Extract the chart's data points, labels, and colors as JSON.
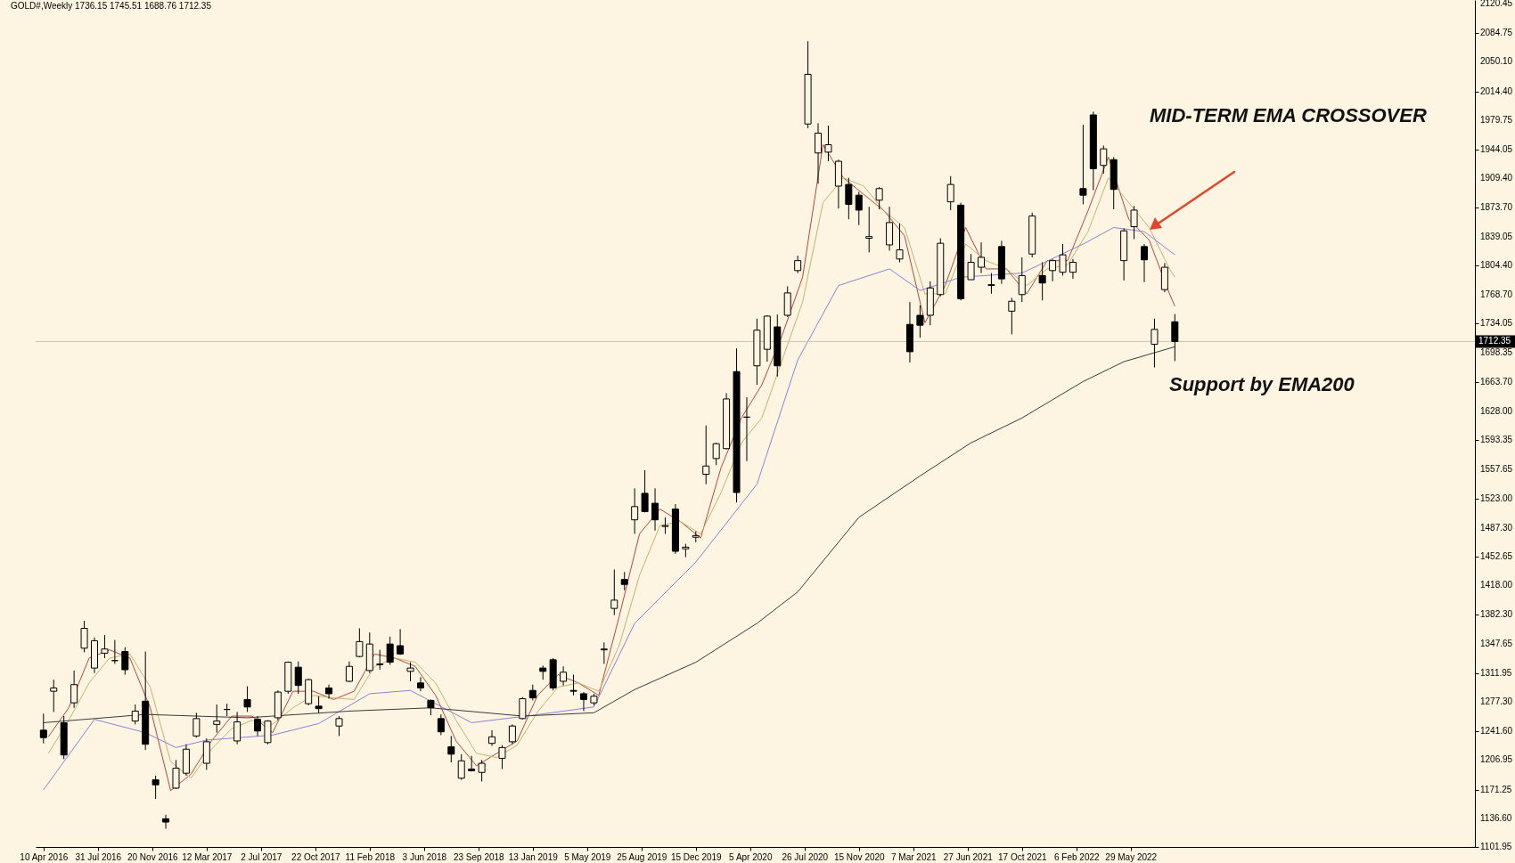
{
  "chart_data": {
    "type": "candlestick",
    "title": "GOLD#,Weekly 1736.15 1745.51 1688.76 1712.35",
    "x": [
      "2016-04-10",
      "2016-05-01",
      "2016-05-22",
      "2016-06-12",
      "2016-07-03",
      "2016-07-24",
      "2016-08-14",
      "2016-09-04",
      "2016-09-25",
      "2016-10-16",
      "2016-11-06",
      "2016-11-27",
      "2016-12-18",
      "2017-01-08",
      "2017-01-29",
      "2017-02-19",
      "2017-03-12",
      "2017-04-02",
      "2017-04-23",
      "2017-05-14",
      "2017-06-04",
      "2017-06-25",
      "2017-07-16",
      "2017-08-06",
      "2017-08-27",
      "2017-09-17",
      "2017-10-08",
      "2017-10-29",
      "2017-11-19",
      "2017-12-10",
      "2017-12-31",
      "2018-01-21",
      "2018-02-11",
      "2018-03-04",
      "2018-03-25",
      "2018-04-15",
      "2018-05-06",
      "2018-05-27",
      "2018-06-17",
      "2018-07-08",
      "2018-07-29",
      "2018-08-19",
      "2018-09-09",
      "2018-09-30",
      "2018-10-21",
      "2018-11-11",
      "2018-12-02",
      "2018-12-23",
      "2019-01-13",
      "2019-02-03",
      "2019-02-24",
      "2019-03-17",
      "2019-04-07",
      "2019-04-28",
      "2019-05-19",
      "2019-06-09",
      "2019-06-30",
      "2019-07-21",
      "2019-08-11",
      "2019-09-01",
      "2019-09-22",
      "2019-10-13",
      "2019-11-03",
      "2019-11-24",
      "2019-12-15",
      "2020-01-05",
      "2020-01-26",
      "2020-02-16",
      "2020-03-08",
      "2020-03-29",
      "2020-04-19",
      "2020-05-10",
      "2020-05-31",
      "2020-06-21",
      "2020-07-12",
      "2020-08-02",
      "2020-08-23",
      "2020-09-13",
      "2020-10-04",
      "2020-10-25",
      "2020-11-15",
      "2020-12-06",
      "2020-12-27",
      "2021-01-17",
      "2021-02-07",
      "2021-02-28",
      "2021-03-21",
      "2021-04-11",
      "2021-05-02",
      "2021-05-23",
      "2021-06-13",
      "2021-07-04",
      "2021-07-25",
      "2021-08-15",
      "2021-09-05",
      "2021-09-26",
      "2021-10-17",
      "2021-11-07",
      "2021-11-28",
      "2021-12-19",
      "2022-01-09",
      "2022-01-30",
      "2022-02-20",
      "2022-03-13",
      "2022-04-03",
      "2022-04-24",
      "2022-05-15",
      "2022-06-05",
      "2022-06-26",
      "2022-07-17",
      "2022-08-07",
      "2022-08-28"
    ],
    "ohlc": [
      [
        1243,
        1263,
        1227,
        1234
      ],
      [
        1290,
        1304,
        1265,
        1294
      ],
      [
        1252,
        1260,
        1208,
        1213
      ],
      [
        1276,
        1315,
        1270,
        1298
      ],
      [
        1342,
        1375,
        1337,
        1366
      ],
      [
        1318,
        1355,
        1312,
        1351
      ],
      [
        1336,
        1358,
        1330,
        1341
      ],
      [
        1327,
        1352,
        1323,
        1327
      ],
      [
        1338,
        1343,
        1310,
        1316
      ],
      [
        1254,
        1274,
        1250,
        1266
      ],
      [
        1278,
        1338,
        1219,
        1226
      ],
      [
        1183,
        1188,
        1160,
        1177
      ],
      [
        1136,
        1141,
        1124,
        1132
      ],
      [
        1173,
        1207,
        1172,
        1197
      ],
      [
        1191,
        1226,
        1188,
        1220
      ],
      [
        1236,
        1264,
        1234,
        1257
      ],
      [
        1203,
        1233,
        1195,
        1229
      ],
      [
        1250,
        1274,
        1240,
        1254
      ],
      [
        1268,
        1275,
        1260,
        1268
      ],
      [
        1230,
        1265,
        1226,
        1253
      ],
      [
        1280,
        1296,
        1265,
        1271
      ],
      [
        1256,
        1260,
        1236,
        1242
      ],
      [
        1228,
        1255,
        1226,
        1254
      ],
      [
        1258,
        1291,
        1255,
        1289
      ],
      [
        1290,
        1326,
        1287,
        1325
      ],
      [
        1319,
        1326,
        1287,
        1297
      ],
      [
        1275,
        1305,
        1273,
        1304
      ],
      [
        1272,
        1284,
        1264,
        1269
      ],
      [
        1294,
        1298,
        1281,
        1287
      ],
      [
        1248,
        1260,
        1236,
        1257
      ],
      [
        1302,
        1326,
        1301,
        1320
      ],
      [
        1332,
        1366,
        1331,
        1350
      ],
      [
        1315,
        1361,
        1312,
        1347
      ],
      [
        1322,
        1340,
        1316,
        1323
      ],
      [
        1347,
        1356,
        1322,
        1325
      ],
      [
        1345,
        1365,
        1334,
        1335
      ],
      [
        1314,
        1325,
        1302,
        1318
      ],
      [
        1300,
        1307,
        1290,
        1294
      ],
      [
        1279,
        1280,
        1261,
        1270
      ],
      [
        1257,
        1262,
        1237,
        1241
      ],
      [
        1223,
        1236,
        1204,
        1214
      ],
      [
        1185,
        1214,
        1183,
        1206
      ],
      [
        1196,
        1212,
        1193,
        1194
      ],
      [
        1192,
        1207,
        1181,
        1203
      ],
      [
        1227,
        1243,
        1224,
        1235
      ],
      [
        1209,
        1225,
        1196,
        1222
      ],
      [
        1229,
        1250,
        1226,
        1248
      ],
      [
        1257,
        1283,
        1256,
        1281
      ],
      [
        1291,
        1298,
        1279,
        1282
      ],
      [
        1318,
        1321,
        1304,
        1314
      ],
      [
        1328,
        1330,
        1291,
        1294
      ],
      [
        1302,
        1320,
        1297,
        1313
      ],
      [
        1291,
        1310,
        1285,
        1290
      ],
      [
        1287,
        1289,
        1266,
        1280
      ],
      [
        1276,
        1287,
        1273,
        1284
      ],
      [
        1340,
        1349,
        1323,
        1341
      ],
      [
        1390,
        1437,
        1382,
        1400
      ],
      [
        1425,
        1434,
        1412,
        1419
      ],
      [
        1497,
        1535,
        1480,
        1513
      ],
      [
        1529,
        1557,
        1506,
        1507
      ],
      [
        1517,
        1535,
        1484,
        1497
      ],
      [
        1489,
        1500,
        1480,
        1490
      ],
      [
        1510,
        1516,
        1456,
        1459
      ],
      [
        1462,
        1468,
        1452,
        1464
      ],
      [
        1476,
        1483,
        1470,
        1478
      ],
      [
        1552,
        1611,
        1540,
        1562
      ],
      [
        1571,
        1590,
        1563,
        1589
      ],
      [
        1583,
        1650,
        1582,
        1643
      ],
      [
        1676,
        1704,
        1518,
        1530
      ],
      [
        1621,
        1645,
        1568,
        1621
      ],
      [
        1683,
        1740,
        1660,
        1726
      ],
      [
        1703,
        1744,
        1688,
        1743
      ],
      [
        1730,
        1745,
        1670,
        1683
      ],
      [
        1744,
        1779,
        1742,
        1771
      ],
      [
        1798,
        1816,
        1795,
        1810
      ],
      [
        1975,
        2075,
        1970,
        2035
      ],
      [
        1940,
        1976,
        1903,
        1964
      ],
      [
        1941,
        1973,
        1930,
        1950
      ],
      [
        1900,
        1932,
        1873,
        1930
      ],
      [
        1902,
        1910,
        1860,
        1878
      ],
      [
        1889,
        1893,
        1853,
        1871
      ],
      [
        1837,
        1875,
        1820,
        1839
      ],
      [
        1883,
        1899,
        1872,
        1897
      ],
      [
        1829,
        1875,
        1822,
        1856
      ],
      [
        1812,
        1855,
        1808,
        1823
      ],
      [
        1733,
        1760,
        1687,
        1700
      ],
      [
        1744,
        1756,
        1717,
        1732
      ],
      [
        1744,
        1785,
        1732,
        1777
      ],
      [
        1769,
        1837,
        1767,
        1831
      ],
      [
        1881,
        1912,
        1871,
        1902
      ],
      [
        1877,
        1880,
        1762,
        1764
      ],
      [
        1787,
        1818,
        1787,
        1808
      ],
      [
        1802,
        1832,
        1795,
        1814
      ],
      [
        1780,
        1795,
        1770,
        1781
      ],
      [
        1827,
        1834,
        1782,
        1788
      ],
      [
        1749,
        1765,
        1721,
        1761
      ],
      [
        1769,
        1814,
        1760,
        1792
      ],
      [
        1818,
        1868,
        1814,
        1864
      ],
      [
        1792,
        1808,
        1762,
        1783
      ],
      [
        1798,
        1812,
        1785,
        1810
      ],
      [
        1796,
        1830,
        1792,
        1817
      ],
      [
        1796,
        1812,
        1788,
        1808
      ],
      [
        1897,
        1974,
        1878,
        1889
      ],
      [
        1986,
        1990,
        1895,
        1921
      ],
      [
        1925,
        1949,
        1915,
        1945
      ],
      [
        1932,
        1935,
        1872,
        1896
      ],
      [
        1810,
        1849,
        1786,
        1846
      ],
      [
        1851,
        1876,
        1836,
        1871
      ],
      [
        1827,
        1830,
        1784,
        1811
      ],
      [
        1709,
        1740,
        1681,
        1727
      ],
      [
        1775,
        1807,
        1772,
        1802
      ],
      [
        1736.15,
        1745.51,
        1688.76,
        1712.35
      ]
    ],
    "series": [
      {
        "type": "line",
        "color": "#b5473a",
        "x": [
          "2016-04-20",
          "2016-06-01",
          "2016-07-13",
          "2016-08-24",
          "2016-10-05",
          "2016-11-16",
          "2016-12-28",
          "2017-02-08",
          "2017-03-22",
          "2017-05-03",
          "2017-06-14",
          "2017-07-26",
          "2017-09-06",
          "2017-10-18",
          "2017-11-29",
          "2018-01-10",
          "2018-02-21",
          "2018-04-04",
          "2018-05-16",
          "2018-06-27",
          "2018-08-08",
          "2018-09-19",
          "2018-10-31",
          "2018-12-12",
          "2019-01-23",
          "2019-03-06",
          "2019-04-17",
          "2019-05-29",
          "2019-07-10",
          "2019-08-21",
          "2019-10-02",
          "2019-11-13",
          "2019-12-25",
          "2020-02-05",
          "2020-03-18",
          "2020-04-29",
          "2020-06-10",
          "2020-07-22",
          "2020-09-02",
          "2020-10-14",
          "2020-11-25",
          "2021-01-06",
          "2021-02-17",
          "2021-03-31",
          "2021-05-12",
          "2021-06-23",
          "2021-08-04",
          "2021-09-15",
          "2021-10-27",
          "2021-12-08",
          "2022-01-19",
          "2022-03-02",
          "2022-04-13",
          "2022-05-25",
          "2022-07-06",
          "2022-08-17",
          "2022-08-28"
        ],
        "values": [
          1235,
          1270,
          1330,
          1340,
          1330,
          1270,
          1170,
          1190,
          1230,
          1260,
          1260,
          1240,
          1290,
          1290,
          1280,
          1290,
          1335,
          1330,
          1320,
          1285,
          1230,
          1200,
          1215,
          1230,
          1285,
          1310,
          1300,
          1285,
          1380,
          1480,
          1510,
          1495,
          1475,
          1560,
          1620,
          1660,
          1720,
          1790,
          1950,
          1910,
          1890,
          1870,
          1840,
          1735,
          1780,
          1850,
          1800,
          1800,
          1770,
          1810,
          1810,
          1870,
          1935,
          1860,
          1835,
          1770,
          1755
        ]
      },
      {
        "type": "line",
        "color": "#c2b46a",
        "x": [
          "2016-04-20",
          "2016-06-01",
          "2016-07-13",
          "2016-08-24",
          "2016-10-05",
          "2016-11-16",
          "2016-12-28",
          "2017-02-08",
          "2017-03-22",
          "2017-05-03",
          "2017-06-14",
          "2017-07-26",
          "2017-09-06",
          "2017-10-18",
          "2017-11-29",
          "2018-01-10",
          "2018-02-21",
          "2018-04-04",
          "2018-05-16",
          "2018-06-27",
          "2018-08-08",
          "2018-09-19",
          "2018-10-31",
          "2018-12-12",
          "2019-01-23",
          "2019-03-06",
          "2019-04-17",
          "2019-05-29",
          "2019-07-10",
          "2019-08-21",
          "2019-10-02",
          "2019-11-13",
          "2019-12-25",
          "2020-02-05",
          "2020-03-18",
          "2020-04-29",
          "2020-06-10",
          "2020-07-22",
          "2020-09-02",
          "2020-10-14",
          "2020-11-25",
          "2021-01-06",
          "2021-02-17",
          "2021-03-31",
          "2021-05-12",
          "2021-06-23",
          "2021-08-04",
          "2021-09-15",
          "2021-10-27",
          "2021-12-08",
          "2022-01-19",
          "2022-03-02",
          "2022-04-13",
          "2022-05-25",
          "2022-07-06",
          "2022-08-17",
          "2022-08-28"
        ],
        "values": [
          1215,
          1255,
          1300,
          1330,
          1335,
          1295,
          1205,
          1185,
          1220,
          1245,
          1255,
          1250,
          1270,
          1285,
          1282,
          1280,
          1320,
          1330,
          1325,
          1300,
          1255,
          1215,
          1210,
          1225,
          1265,
          1295,
          1300,
          1290,
          1345,
          1430,
          1490,
          1495,
          1480,
          1530,
          1590,
          1620,
          1690,
          1760,
          1880,
          1910,
          1900,
          1870,
          1850,
          1770,
          1770,
          1830,
          1810,
          1800,
          1780,
          1800,
          1805,
          1845,
          1910,
          1880,
          1850,
          1800,
          1790
        ]
      },
      {
        "type": "line",
        "color": "#8a80d8",
        "x": [
          "2016-04-10",
          "2016-07-24",
          "2016-11-06",
          "2017-01-08",
          "2017-03-12",
          "2017-07-26",
          "2017-10-29",
          "2018-02-11",
          "2018-05-06",
          "2018-09-09",
          "2019-01-13",
          "2019-05-19",
          "2019-08-11",
          "2019-12-15",
          "2020-04-19",
          "2020-07-12",
          "2020-10-04",
          "2021-01-17",
          "2021-03-21",
          "2021-06-13",
          "2021-10-17",
          "2022-02-20",
          "2022-04-24",
          "2022-06-26",
          "2022-08-28"
        ],
        "values": [
          1171,
          1256,
          1240,
          1222,
          1231,
          1237,
          1251,
          1287,
          1291,
          1252,
          1261,
          1271,
          1372,
          1446,
          1540,
          1690,
          1780,
          1800,
          1774,
          1790,
          1795,
          1830,
          1850,
          1845,
          1817
        ]
      },
      {
        "type": "line",
        "color": "#3a3a3a",
        "x": [
          "2016-04-10",
          "2016-11-06",
          "2017-06-04",
          "2017-12-31",
          "2018-06-17",
          "2018-12-23",
          "2019-05-19",
          "2019-08-11",
          "2019-12-15",
          "2020-04-19",
          "2020-07-12",
          "2020-11-15",
          "2021-03-21",
          "2021-07-04",
          "2021-10-17",
          "2022-02-20",
          "2022-05-15",
          "2022-08-28"
        ],
        "values": [
          1252,
          1262,
          1258,
          1266,
          1270,
          1260,
          1264,
          1292,
          1325,
          1372,
          1410,
          1500,
          1550,
          1590,
          1620,
          1664,
          1688,
          1706
        ]
      }
    ],
    "xlim": [
      "2016-04-03",
      "2024-04-28"
    ],
    "xticks": [
      {
        "value": "2016-04-10",
        "label": "10 Apr 2016"
      },
      {
        "value": "2016-07-31",
        "label": "31 Jul 2016"
      },
      {
        "value": "2016-11-20",
        "label": "20 Nov 2016"
      },
      {
        "value": "2017-03-12",
        "label": "12 Mar 2017"
      },
      {
        "value": "2017-07-02",
        "label": "2 Jul 2017"
      },
      {
        "value": "2017-10-22",
        "label": "22 Oct 2017"
      },
      {
        "value": "2018-02-11",
        "label": "11 Feb 2018"
      },
      {
        "value": "2018-06-03",
        "label": "3 Jun 2018"
      },
      {
        "value": "2018-09-23",
        "label": "23 Sep 2018"
      },
      {
        "value": "2019-01-13",
        "label": "13 Jan 2019"
      },
      {
        "value": "2019-05-05",
        "label": "5 May 2019"
      },
      {
        "value": "2019-08-25",
        "label": "25 Aug 2019"
      },
      {
        "value": "2019-12-15",
        "label": "15 Dec 2019"
      },
      {
        "value": "2020-04-05",
        "label": "5 Apr 2020"
      },
      {
        "value": "2020-07-26",
        "label": "26 Jul 2020"
      },
      {
        "value": "2020-11-15",
        "label": "15 Nov 2020"
      },
      {
        "value": "2021-03-07",
        "label": "7 Mar 2021"
      },
      {
        "value": "2021-06-27",
        "label": "27 Jun 2021"
      },
      {
        "value": "2021-10-17",
        "label": "17 Oct 2021"
      },
      {
        "value": "2022-02-06",
        "label": "6 Feb 2022"
      },
      {
        "value": "2022-05-29",
        "label": "29 May 2022"
      }
    ],
    "ylim": [
      1101.95,
      2124.75
    ],
    "yticks": [
      {
        "value": 2120.45,
        "label": "2120.45"
      },
      {
        "value": 2084.75,
        "label": "2084.75"
      },
      {
        "value": 2050.1,
        "label": "2050.10"
      },
      {
        "value": 2014.4,
        "label": "2014.40"
      },
      {
        "value": 1979.75,
        "label": "1979.75"
      },
      {
        "value": 1944.05,
        "label": "1944.05"
      },
      {
        "value": 1909.4,
        "label": "1909.40"
      },
      {
        "value": 1873.7,
        "label": "1873.70"
      },
      {
        "value": 1839.05,
        "label": "1839.05"
      },
      {
        "value": 1804.4,
        "label": "1804.40"
      },
      {
        "value": 1768.7,
        "label": "1768.70"
      },
      {
        "value": 1734.05,
        "label": "1734.05"
      },
      {
        "value": 1698.35,
        "label": "1698.35"
      },
      {
        "value": 1663.7,
        "label": "1663.70"
      },
      {
        "value": 1628,
        "label": "1628.00"
      },
      {
        "value": 1593.35,
        "label": "1593.35"
      },
      {
        "value": 1557.65,
        "label": "1557.65"
      },
      {
        "value": 1523,
        "label": "1523.00"
      },
      {
        "value": 1487.3,
        "label": "1487.30"
      },
      {
        "value": 1452.65,
        "label": "1452.65"
      },
      {
        "value": 1418,
        "label": "1418.00"
      },
      {
        "value": 1382.3,
        "label": "1382.30"
      },
      {
        "value": 1347.65,
        "label": "1347.65"
      },
      {
        "value": 1311.95,
        "label": "1311.95"
      },
      {
        "value": 1277.3,
        "label": "1277.30"
      },
      {
        "value": 1241.6,
        "label": "1241.60"
      },
      {
        "value": 1206.95,
        "label": "1206.95"
      },
      {
        "value": 1171.25,
        "label": "1171.25"
      },
      {
        "value": 1136.6,
        "label": "1136.60"
      },
      {
        "value": 1101.95,
        "label": "1101.95"
      }
    ],
    "ref_lines": [
      {
        "axis": "y",
        "value": 1712.35,
        "label": "1712.35",
        "color": "#c8c4b8"
      }
    ],
    "annotations": [
      "MID-TERM EMA CROSSOVER",
      "Support by EMA200"
    ]
  }
}
